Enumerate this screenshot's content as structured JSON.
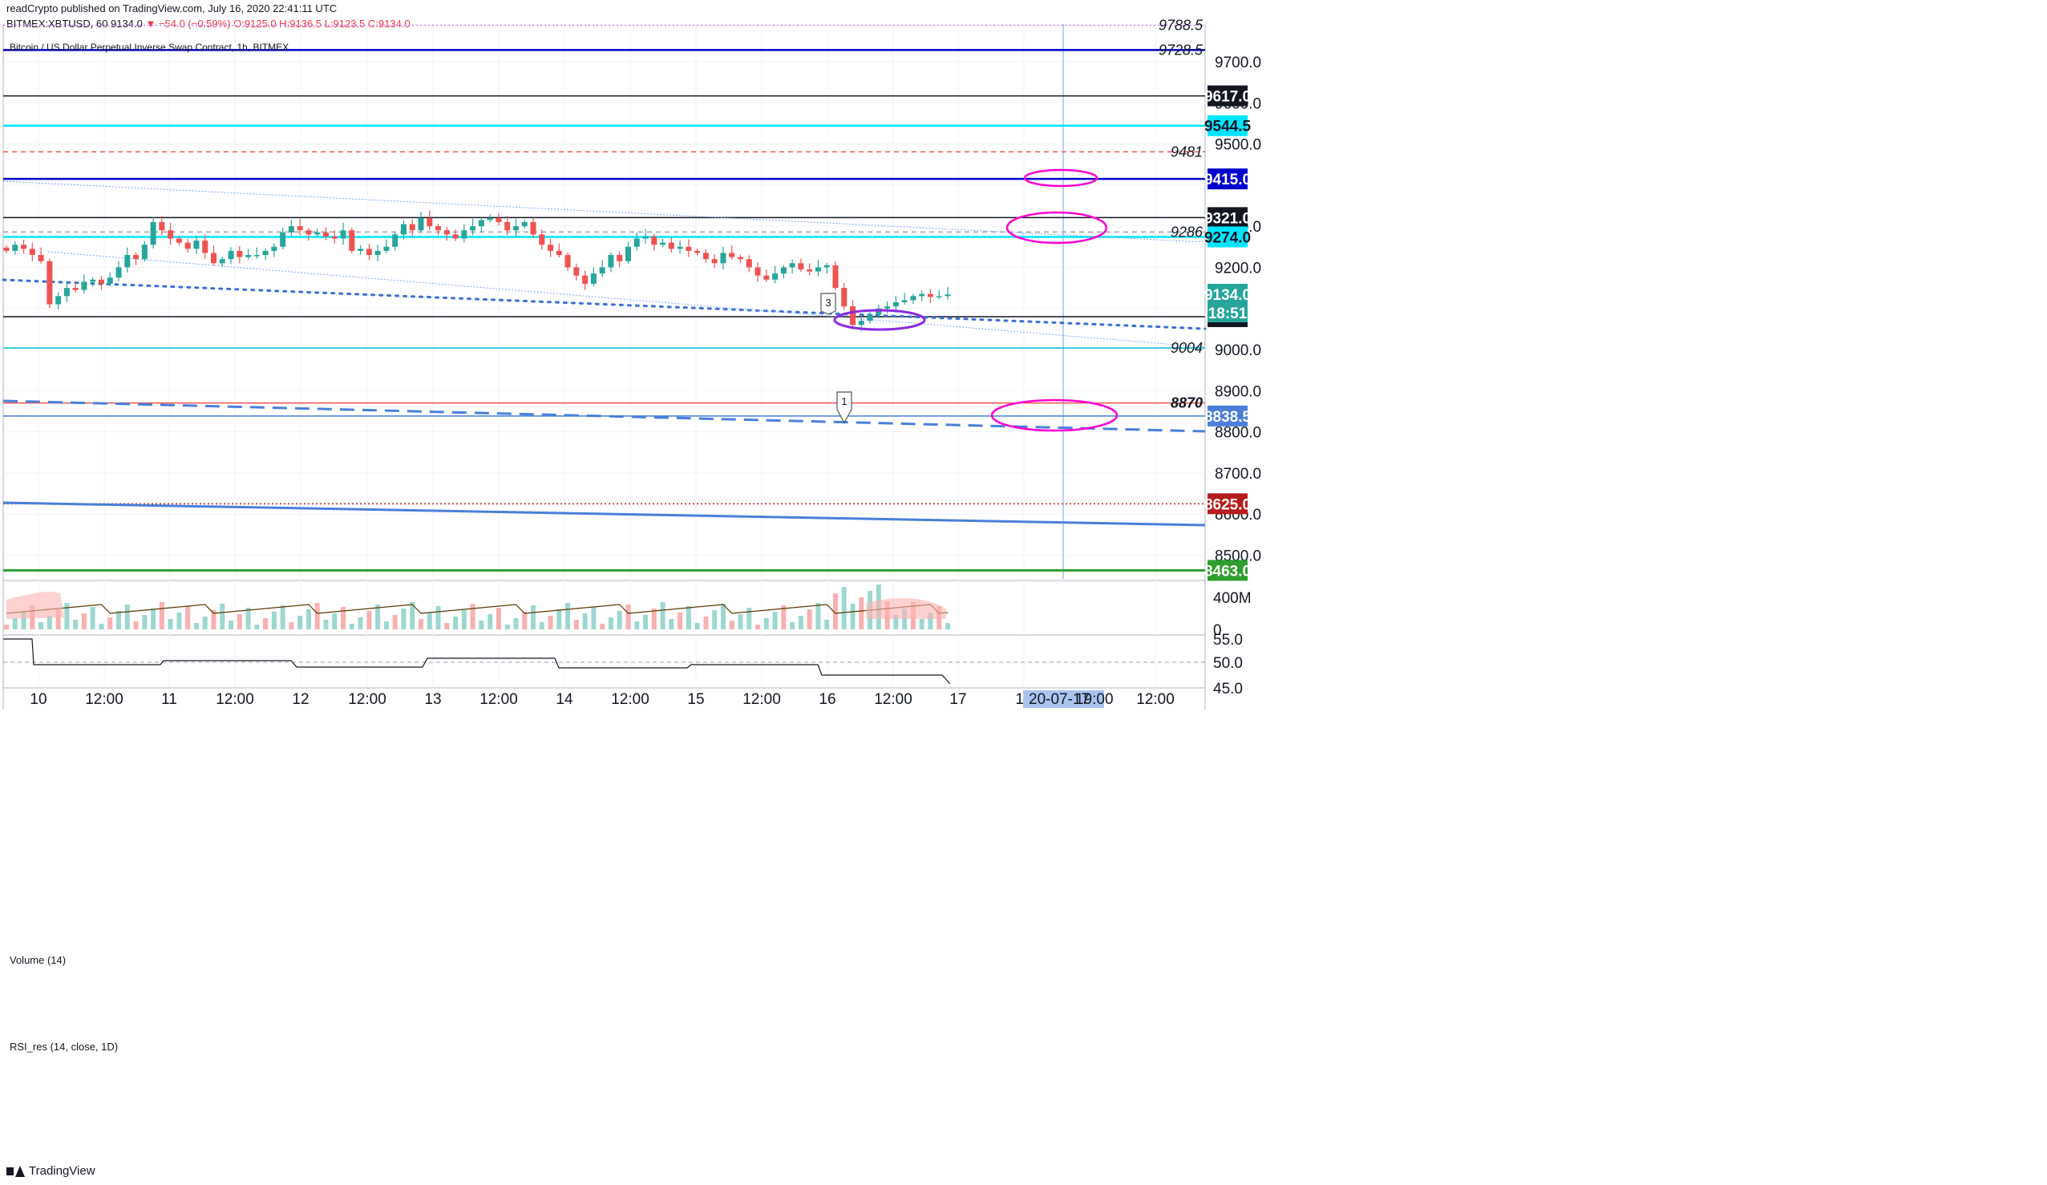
{
  "header": {
    "line1": "readCrypto published on TradingView.com, July 16, 2020 22:41:11 UTC",
    "symbol_line": "BITMEX:XBTUSD, 60",
    "last": "9134.0",
    "change": "▼ −54.0 (−0.59%)",
    "open": "O:9125.0",
    "high": "H:9136.5",
    "low": "L:9123.5",
    "close": "C:9134.0"
  },
  "symbol_title": "Bitcoin / US Dollar Perpetual Inverse Swap Contract, 1h, BITMEX",
  "volume_label": "Volume (14)",
  "rsi_label": "RSI_res (14, close, 1D)",
  "brand": "TradingView",
  "colors": {
    "up": "#26a69a",
    "down": "#ef5350",
    "grid": "#f0f3fa",
    "axis": "#131722",
    "cyan": "#00e5ff",
    "navy": "#0000cc",
    "blue": "#4a7fdb",
    "green": "#2e9e2e",
    "magenta": "#ff00d4",
    "purple": "#8a2be2",
    "crosshair": "#6ea3ff"
  },
  "chart_data": {
    "type": "candlestick",
    "interval": "1h",
    "x_tick_labels": [
      "10",
      "12:00",
      "11",
      "12:00",
      "12",
      "12:00",
      "13",
      "12:00",
      "14",
      "12:00",
      "15",
      "12:00",
      "16",
      "12:00",
      "17",
      "12",
      "12:00"
    ],
    "y_tick_labels": [
      "9700.0",
      "9600.0",
      "9500.0",
      "9300.0",
      "9200.0",
      "9000.0",
      "8900.0",
      "8800.0",
      "8700.0",
      "8600.0",
      "8500.0"
    ],
    "ylim": [
      8440,
      9810
    ],
    "candle_closes": [
      9240,
      9255,
      9245,
      9230,
      9215,
      9110,
      9130,
      9150,
      9145,
      9165,
      9170,
      9160,
      9175,
      9200,
      9230,
      9220,
      9255,
      9310,
      9290,
      9270,
      9260,
      9245,
      9265,
      9235,
      9210,
      9220,
      9240,
      9225,
      9230,
      9230,
      9240,
      9250,
      9285,
      9300,
      9290,
      9280,
      9285,
      9275,
      9270,
      9290,
      9240,
      9245,
      9230,
      9240,
      9250,
      9280,
      9305,
      9290,
      9320,
      9300,
      9290,
      9280,
      9270,
      9290,
      9300,
      9315,
      9320,
      9310,
      9290,
      9300,
      9310,
      9280,
      9255,
      9240,
      9230,
      9200,
      9180,
      9160,
      9185,
      9200,
      9230,
      9215,
      9250,
      9270,
      9275,
      9255,
      9260,
      9245,
      9250,
      9240,
      9235,
      9220,
      9210,
      9235,
      9225,
      9220,
      9200,
      9180,
      9170,
      9185,
      9200,
      9210,
      9195,
      9190,
      9200,
      9205,
      9150,
      9105,
      9060,
      9070,
      9085,
      9100,
      9105,
      9115,
      9120,
      9130,
      9135,
      9128,
      9130,
      9134
    ],
    "volume_axis_labels": [
      "400M",
      "0"
    ],
    "rsi_axis_labels": [
      "55.0",
      "50.0",
      "45.0"
    ],
    "drawings": {
      "horizontal_levels": [
        {
          "price": 9788.5,
          "label": "9788.5",
          "style": "dotted",
          "color": "#c77cff"
        },
        {
          "price": 9728.5,
          "label": "9728.5",
          "style": "solid",
          "color": "#0000cc"
        },
        {
          "price": 9617.0,
          "label": "9617.0",
          "style": "solid",
          "color": "#131722",
          "tag": true
        },
        {
          "price": 9544.5,
          "label": "9544.5",
          "style": "solid",
          "color": "#00e5ff",
          "tag": true
        },
        {
          "price": 9481,
          "label": "9481",
          "style": "dashed",
          "color": "#ef5350"
        },
        {
          "price": 9415.0,
          "label": "9415.0",
          "style": "solid",
          "color": "#0000cc",
          "tag": true
        },
        {
          "price": 9321.0,
          "label": "9321.0",
          "style": "solid",
          "color": "#131722",
          "tag": true
        },
        {
          "price": 9286,
          "label": "9286",
          "style": "dashed",
          "color": "#9aa0aa"
        },
        {
          "price": 9274.0,
          "label": "9274.0",
          "style": "solid",
          "color": "#00e5ff",
          "tag": true
        },
        {
          "price": 9080.0,
          "label": "9080.0",
          "style": "solid",
          "color": "#131722",
          "tag": true
        },
        {
          "price": 9004,
          "label": "9004",
          "style": "solid",
          "color": "#00bcd4"
        },
        {
          "price": 8870,
          "label": "8870",
          "style": "solid",
          "color": "#ef5350"
        },
        {
          "price": 8838.5,
          "label": "8838.5",
          "style": "solid",
          "color": "#4a7fdb",
          "tag": true
        },
        {
          "price": 8625.0,
          "label": "8625.0",
          "style": "dotted",
          "color": "#b71c1c",
          "tag": true
        },
        {
          "price": 8463.0,
          "label": "8463.0",
          "style": "solid",
          "color": "#2e9e2e",
          "tag": true
        }
      ],
      "last_price_tag": "9134.0",
      "countdown_tag": "18:51",
      "markers": [
        "3",
        "1"
      ],
      "crosshair_date": "20-07-17",
      "crosshair_time": "19:00"
    }
  }
}
